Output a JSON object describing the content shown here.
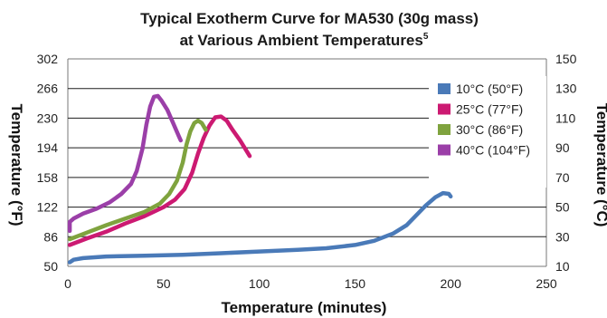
{
  "chart_data": {
    "type": "line",
    "title_line1": "Typical Exotherm Curve for MA530 (30g mass)",
    "title_line2": "at Various Ambient Temperatures",
    "title_superscript": "5",
    "xlabel": "Temperature (minutes)",
    "ylabel_left": "Temperature (°F)",
    "ylabel_right": "Temperature (°C)",
    "xlim": [
      0,
      250
    ],
    "ylim_left": [
      50,
      302
    ],
    "ylim_right": [
      10,
      150
    ],
    "x_ticks": [
      "0",
      "50",
      "100",
      "150",
      "200",
      "250"
    ],
    "y_ticks_left": [
      "50",
      "86",
      "122",
      "158",
      "194",
      "230",
      "266",
      "302"
    ],
    "y_ticks_right": [
      "10",
      "30",
      "50",
      "70",
      "90",
      "110",
      "130",
      "150"
    ],
    "grid": "horizontal",
    "legend_position": "top-right",
    "series": [
      {
        "name": "10°C (50°F)",
        "color": "#4a7ab8",
        "points": [
          [
            1,
            55
          ],
          [
            3,
            58
          ],
          [
            8,
            60
          ],
          [
            20,
            62
          ],
          [
            40,
            63
          ],
          [
            60,
            64
          ],
          [
            80,
            66
          ],
          [
            100,
            68
          ],
          [
            120,
            70
          ],
          [
            135,
            72
          ],
          [
            150,
            76
          ],
          [
            160,
            81
          ],
          [
            170,
            90
          ],
          [
            177,
            100
          ],
          [
            182,
            112
          ],
          [
            187,
            124
          ],
          [
            192,
            134
          ],
          [
            196,
            139
          ],
          [
            199,
            138
          ],
          [
            200,
            135
          ]
        ]
      },
      {
        "name": "25°C (77°F)",
        "color": "#cc1a72",
        "points": [
          [
            1,
            76
          ],
          [
            10,
            84
          ],
          [
            20,
            92
          ],
          [
            30,
            102
          ],
          [
            40,
            111
          ],
          [
            50,
            122
          ],
          [
            56,
            131
          ],
          [
            61,
            144
          ],
          [
            65,
            164
          ],
          [
            68,
            187
          ],
          [
            71,
            206
          ],
          [
            74,
            221
          ],
          [
            77,
            231
          ],
          [
            80,
            232
          ],
          [
            83,
            227
          ],
          [
            86,
            216
          ],
          [
            90,
            203
          ],
          [
            95,
            184
          ]
        ]
      },
      {
        "name": "30°C (86°F)",
        "color": "#7fa33e",
        "points": [
          [
            1,
            83
          ],
          [
            10,
            91
          ],
          [
            20,
            100
          ],
          [
            30,
            108
          ],
          [
            40,
            116
          ],
          [
            48,
            126
          ],
          [
            53,
            138
          ],
          [
            57,
            154
          ],
          [
            60,
            176
          ],
          [
            62,
            198
          ],
          [
            64,
            214
          ],
          [
            66,
            224
          ],
          [
            68,
            227
          ],
          [
            70,
            224
          ],
          [
            72,
            216
          ]
        ]
      },
      {
        "name": "40°C (104°F)",
        "color": "#9b3fa8",
        "points": [
          [
            1,
            93
          ],
          [
            1,
            104
          ],
          [
            3,
            108
          ],
          [
            8,
            114
          ],
          [
            15,
            120
          ],
          [
            22,
            128
          ],
          [
            28,
            138
          ],
          [
            33,
            150
          ],
          [
            36,
            166
          ],
          [
            39,
            193
          ],
          [
            41,
            222
          ],
          [
            43,
            244
          ],
          [
            45,
            256
          ],
          [
            47,
            257
          ],
          [
            49,
            251
          ],
          [
            52,
            240
          ],
          [
            55,
            224
          ],
          [
            58,
            208
          ],
          [
            59,
            203
          ]
        ]
      }
    ]
  }
}
